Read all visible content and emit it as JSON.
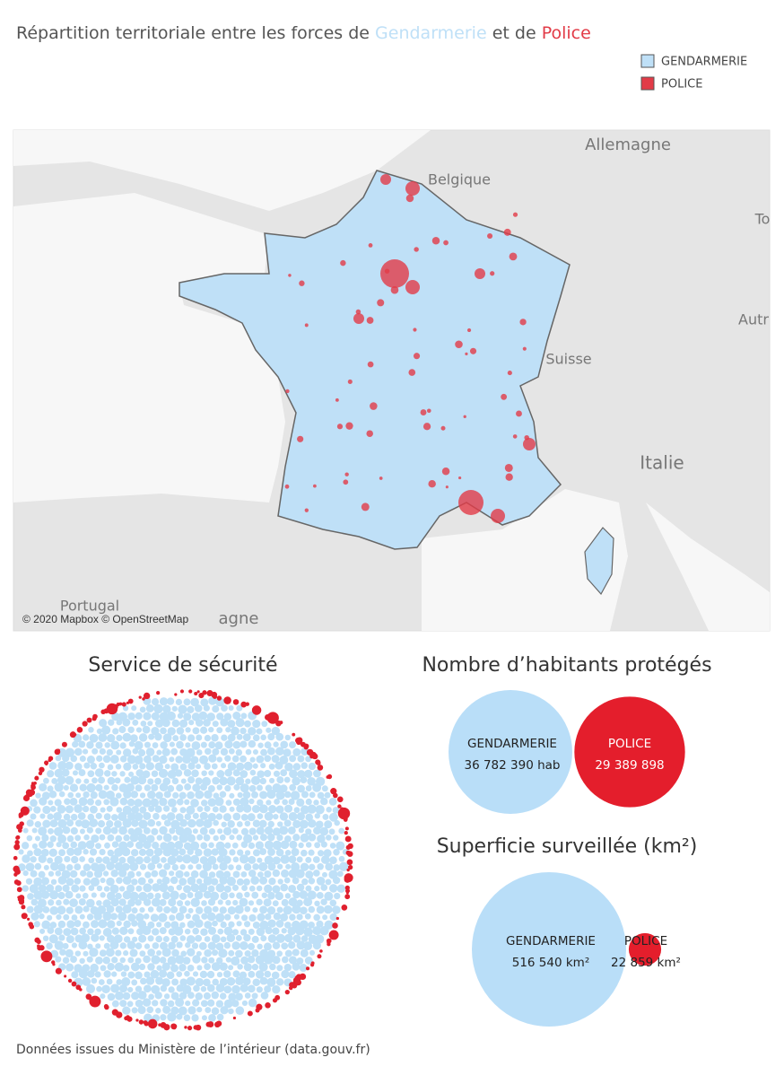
{
  "title": {
    "prefix": "Répartition territoriale entre les forces de",
    "gendarmerie": "Gendarmerie",
    "middle": "et de",
    "police": "Police"
  },
  "footer": "Données issues du Ministère de l’intérieur (data.gouv.fr)",
  "chart_data": [
    {
      "type": "map",
      "series": [
        {
          "name": "GENDARMERIE",
          "color": "#bfe0f7"
        },
        {
          "name": "POLICE",
          "color": "#e23b47"
        }
      ],
      "labels": [
        "Allemagne",
        "Belgique",
        "Suisse",
        "Italie",
        "Portugal",
        "agne",
        "To",
        "Autr"
      ],
      "attribution": "© 2020 Mapbox © OpenStreetMap"
    },
    {
      "type": "packed-bubble",
      "title": "Service de sécurité",
      "colors": [
        "#bfe0f7",
        "#e0202e"
      ]
    },
    {
      "type": "bubble",
      "title": "Nombre d’habitants  protégés",
      "categories": [
        "GENDARMERIE",
        "POLICE"
      ],
      "values": [
        36782390,
        29389898
      ],
      "value_labels": [
        "36 782 390 hab",
        "29 389 898"
      ],
      "colors": [
        "#b9def8",
        "#e41e2c"
      ]
    },
    {
      "type": "bubble",
      "title": "Superficie surveillée (km²)",
      "categories": [
        "GENDARMERIE",
        "POLICE"
      ],
      "values": [
        516540,
        22859
      ],
      "value_labels": [
        "516 540 km²",
        "22 859 km²"
      ],
      "colors": [
        "#b9def8",
        "#e41e2c"
      ]
    }
  ]
}
